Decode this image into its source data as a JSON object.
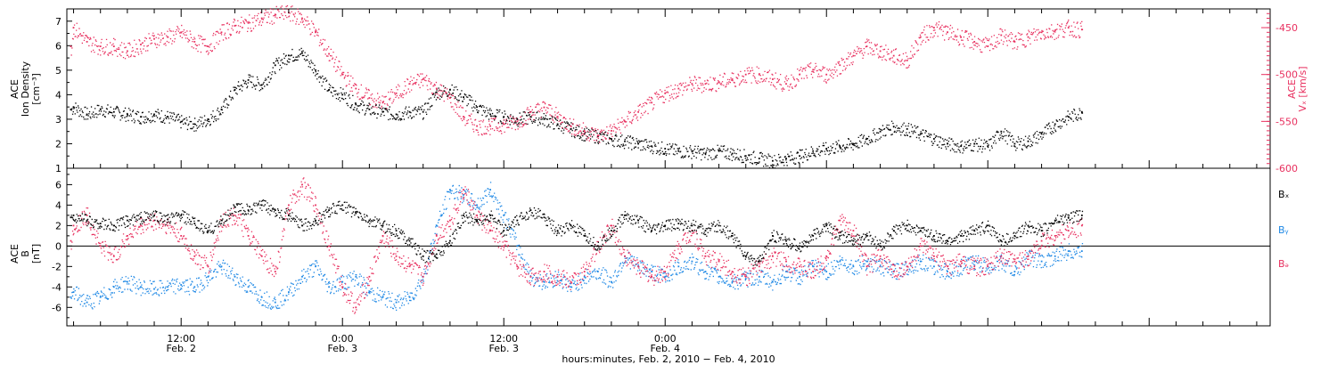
{
  "chart_data": [
    {
      "type": "scatter",
      "panel": "top",
      "ylabel_left": [
        "ACE",
        "Ion Density",
        "[cm⁻³]"
      ],
      "ylabel_right": [
        "ACE",
        "Vₓ [km/s]"
      ],
      "ylim": [
        1,
        7.5
      ],
      "y_ticks": [
        "1",
        "2",
        "3",
        "4",
        "5",
        "6",
        "7"
      ],
      "y2lim": [
        -600,
        -430
      ],
      "y2_ticks": [
        "-450",
        "-500",
        "-550",
        "-600"
      ],
      "x_unit": "hours since 2010-02-02 00:00",
      "x_range": [
        3.5,
        93
      ],
      "series": [
        {
          "name": "Ion Density",
          "axis": "left",
          "color": "#000000",
          "x": [
            3.8,
            4,
            5,
            6,
            7,
            8,
            9,
            10,
            11,
            12,
            13,
            14,
            15,
            16,
            17,
            18,
            19,
            20,
            21,
            22,
            23,
            24,
            25,
            26,
            27,
            28,
            29,
            30,
            31,
            32,
            33,
            34,
            35,
            36,
            37,
            38,
            39,
            40,
            41,
            42,
            43,
            44,
            45,
            46,
            47,
            48,
            49,
            50,
            51,
            52,
            53,
            54,
            55,
            56,
            57,
            58,
            59,
            60,
            61,
            62,
            63,
            64,
            65,
            66,
            67,
            68,
            69,
            70,
            71,
            72,
            73,
            74,
            75,
            76,
            77,
            78,
            79
          ],
          "values": [
            3.4,
            3.5,
            3.2,
            3.4,
            3.3,
            3.2,
            3.1,
            3.2,
            3.1,
            2.9,
            2.8,
            3.0,
            3.4,
            4.2,
            4.6,
            4.4,
            5.2,
            5.6,
            5.7,
            5.0,
            4.2,
            4.0,
            3.6,
            3.4,
            3.3,
            3.2,
            3.3,
            3.3,
            4.1,
            4.2,
            3.9,
            3.5,
            3.2,
            3.1,
            3.0,
            3.1,
            3.0,
            2.8,
            2.6,
            2.4,
            2.3,
            2.2,
            2.1,
            2.0,
            1.9,
            1.8,
            1.7,
            1.7,
            1.6,
            1.7,
            1.6,
            1.5,
            1.4,
            1.3,
            1.4,
            1.5,
            1.7,
            1.8,
            1.9,
            2.0,
            2.2,
            2.5,
            2.7,
            2.6,
            2.4,
            2.2,
            2.0,
            1.9,
            2.0,
            1.9,
            2.5,
            2.0,
            2.1,
            2.4,
            2.8,
            3.1,
            3.3
          ]
        },
        {
          "name": "Vx",
          "axis": "right",
          "color": "#e8305f",
          "x": [
            3.8,
            4,
            5,
            6,
            7,
            8,
            9,
            10,
            11,
            12,
            13,
            14,
            15,
            16,
            17,
            18,
            19,
            20,
            21,
            22,
            23,
            24,
            25,
            26,
            27,
            28,
            29,
            30,
            31,
            32,
            33,
            34,
            35,
            36,
            37,
            38,
            39,
            40,
            41,
            42,
            43,
            44,
            45,
            46,
            47,
            48,
            49,
            50,
            51,
            52,
            53,
            54,
            55,
            56,
            57,
            58,
            59,
            60,
            61,
            62,
            63,
            64,
            65,
            66,
            67,
            68,
            69,
            70,
            71,
            72,
            73,
            74,
            75,
            76,
            77,
            78,
            79
          ],
          "values": [
            -470,
            -450,
            -465,
            -470,
            -470,
            -475,
            -468,
            -462,
            -460,
            -455,
            -465,
            -470,
            -455,
            -448,
            -445,
            -440,
            -436,
            -434,
            -440,
            -455,
            -478,
            -500,
            -515,
            -525,
            -530,
            -520,
            -510,
            -505,
            -515,
            -525,
            -545,
            -555,
            -555,
            -553,
            -550,
            -540,
            -535,
            -545,
            -555,
            -560,
            -565,
            -560,
            -550,
            -540,
            -530,
            -520,
            -515,
            -510,
            -510,
            -508,
            -505,
            -500,
            -500,
            -505,
            -510,
            -500,
            -495,
            -500,
            -490,
            -480,
            -470,
            -475,
            -480,
            -485,
            -460,
            -450,
            -455,
            -460,
            -465,
            -470,
            -458,
            -465,
            -460,
            -455,
            -453,
            -450,
            -452
          ]
        }
      ]
    },
    {
      "type": "scatter",
      "panel": "bottom",
      "ylabel_left": [
        "ACE",
        "B",
        "[nT]"
      ],
      "ylim": [
        -7.8,
        7.6
      ],
      "y_ticks": [
        "-6",
        "-4",
        "-2",
        "0",
        "2",
        "4",
        "6"
      ],
      "zero_line": true,
      "x_unit": "hours since 2010-02-02 00:00",
      "x_range": [
        3.5,
        93
      ],
      "series": [
        {
          "name": "Bₓ",
          "color": "#000000",
          "x": [
            3.8,
            4,
            5,
            6,
            7,
            8,
            9,
            10,
            11,
            12,
            13,
            14,
            15,
            16,
            17,
            18,
            19,
            20,
            21,
            22,
            23,
            24,
            25,
            26,
            27,
            28,
            29,
            30,
            31,
            32,
            33,
            34,
            35,
            36,
            37,
            38,
            39,
            40,
            41,
            42,
            43,
            44,
            45,
            46,
            47,
            48,
            49,
            50,
            51,
            52,
            53,
            54,
            55,
            56,
            57,
            58,
            59,
            60,
            61,
            62,
            63,
            64,
            65,
            66,
            67,
            68,
            69,
            70,
            71,
            72,
            73,
            74,
            75,
            76,
            77,
            78,
            79
          ],
          "values": [
            2.8,
            3.0,
            2.5,
            2.2,
            2.0,
            2.5,
            2.8,
            3.0,
            2.6,
            3.0,
            2.2,
            1.5,
            2.5,
            3.8,
            3.5,
            4.0,
            3.5,
            3.0,
            2.0,
            2.5,
            3.5,
            4.0,
            3.2,
            2.5,
            2.0,
            1.5,
            0.5,
            -1.0,
            -0.8,
            0.5,
            3.0,
            2.5,
            3.0,
            1.5,
            2.5,
            3.5,
            2.8,
            1.5,
            2.0,
            1.0,
            0.0,
            1.5,
            3.0,
            2.5,
            1.5,
            2.0,
            2.2,
            2.0,
            1.5,
            2.0,
            1.0,
            -1.0,
            -1.5,
            1.0,
            0.5,
            0.0,
            1.0,
            2.0,
            1.0,
            0.5,
            1.0,
            0.0,
            1.5,
            2.0,
            1.5,
            1.0,
            0.5,
            1.0,
            1.5,
            2.0,
            0.5,
            1.0,
            2.0,
            1.5,
            2.5,
            2.8,
            3.0
          ]
        },
        {
          "name": "Bᵧ",
          "color": "#1e88e5",
          "x": [
            3.8,
            4,
            5,
            6,
            7,
            8,
            9,
            10,
            11,
            12,
            13,
            14,
            15,
            16,
            17,
            18,
            19,
            20,
            21,
            22,
            23,
            24,
            25,
            26,
            27,
            28,
            29,
            30,
            31,
            32,
            33,
            34,
            35,
            36,
            37,
            38,
            39,
            40,
            41,
            42,
            43,
            44,
            45,
            46,
            47,
            48,
            49,
            50,
            51,
            52,
            53,
            54,
            55,
            56,
            57,
            58,
            59,
            60,
            61,
            62,
            63,
            64,
            65,
            66,
            67,
            68,
            69,
            70,
            71,
            72,
            73,
            74,
            75,
            76,
            77,
            78,
            79
          ],
          "values": [
            -5.0,
            -4.5,
            -5.5,
            -5.0,
            -4.0,
            -3.5,
            -4.0,
            -4.2,
            -4.0,
            -3.8,
            -4.0,
            -3.0,
            -2.0,
            -3.0,
            -4.0,
            -5.0,
            -5.5,
            -4.5,
            -3.0,
            -2.0,
            -4.0,
            -3.5,
            -3.0,
            -4.5,
            -5.0,
            -5.5,
            -5.0,
            -3.0,
            2.0,
            5.5,
            5.0,
            4.0,
            5.5,
            3.0,
            0.0,
            -3.0,
            -3.5,
            -3.0,
            -4.0,
            -3.0,
            -2.5,
            -3.5,
            -1.0,
            -2.0,
            -2.5,
            -3.0,
            -2.0,
            -1.5,
            -2.5,
            -3.0,
            -3.5,
            -3.2,
            -3.0,
            -3.5,
            -2.5,
            -3.0,
            -2.0,
            -2.5,
            -1.5,
            -2.0,
            -1.5,
            -2.0,
            -2.5,
            -2.0,
            -1.5,
            -2.0,
            -2.5,
            -2.0,
            -1.5,
            -2.0,
            -1.5,
            -2.5,
            -1.0,
            -1.5,
            -1.0,
            -0.5,
            -0.5
          ]
        },
        {
          "name": "Bₔ",
          "color": "#e8305f",
          "x": [
            3.8,
            4,
            5,
            6,
            7,
            8,
            9,
            10,
            11,
            12,
            13,
            14,
            15,
            16,
            17,
            18,
            19,
            20,
            21,
            22,
            23,
            24,
            25,
            26,
            27,
            28,
            29,
            30,
            31,
            32,
            33,
            34,
            35,
            36,
            37,
            38,
            39,
            40,
            41,
            42,
            43,
            44,
            45,
            46,
            47,
            48,
            49,
            50,
            51,
            52,
            53,
            54,
            55,
            56,
            57,
            58,
            59,
            60,
            61,
            62,
            63,
            64,
            65,
            66,
            67,
            68,
            69,
            70,
            71,
            72,
            73,
            74,
            75,
            76,
            77,
            78,
            79
          ],
          "values": [
            0.5,
            2.0,
            3.0,
            0.0,
            -1.0,
            1.0,
            2.0,
            2.5,
            2.0,
            1.0,
            -1.0,
            -2.0,
            2.5,
            3.0,
            1.0,
            -1.0,
            -2.5,
            4.0,
            6.0,
            4.0,
            0.0,
            -4.0,
            -6.0,
            -3.0,
            1.0,
            -1.0,
            -2.0,
            -3.0,
            1.0,
            2.5,
            5.5,
            3.0,
            1.5,
            0.0,
            -2.0,
            -3.0,
            -2.5,
            -3.0,
            -3.5,
            -2.5,
            0.0,
            2.0,
            -1.0,
            -2.0,
            -3.0,
            -2.5,
            0.0,
            1.5,
            -1.0,
            -1.5,
            -2.5,
            -3.0,
            -2.0,
            -1.0,
            -1.5,
            -2.0,
            -2.5,
            -1.0,
            2.5,
            1.5,
            -2.0,
            -1.0,
            -2.5,
            -2.0,
            0.0,
            -1.0,
            -2.0,
            -1.5,
            -2.0,
            -2.0,
            -1.0,
            -1.5,
            -1.0,
            0.5,
            1.0,
            1.5,
            2.0
          ]
        }
      ]
    }
  ],
  "x_axis": {
    "ticks": [
      {
        "x": 12,
        "time": "12:00",
        "date": "Feb. 2"
      },
      {
        "x": 24,
        "time": "0:00",
        "date": "Feb. 3"
      },
      {
        "x": 36,
        "time": "12:00",
        "date": "Feb. 3"
      },
      {
        "x": 48,
        "time": "0:00",
        "date": "Feb. 4"
      }
    ],
    "label": "hours:minutes, Feb.  2, 2010 − Feb.  4, 2010"
  },
  "legend": [
    {
      "name": "Bₓ",
      "color": "#000000"
    },
    {
      "name": "Bᵧ",
      "color": "#1e88e5"
    },
    {
      "name": "Bₔ",
      "color": "#e8305f"
    }
  ]
}
